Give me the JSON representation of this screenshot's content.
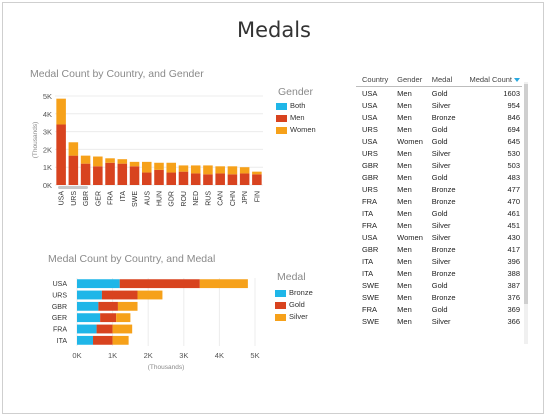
{
  "page": {
    "title": "Medals"
  },
  "colors": {
    "both": "#1fb6e8",
    "men": "#d8431f",
    "women": "#f6a11a",
    "bronze": "#1fb6e8",
    "gold": "#d8431f",
    "silver": "#f6a11a"
  },
  "chart_data": [
    {
      "type": "bar",
      "stacked": true,
      "title": "Medal Count by Country, and Gender",
      "xlabel": "",
      "ylabel": "(Thousands)",
      "ylim": [
        0,
        5000
      ],
      "yticks": [
        0,
        1000,
        2000,
        3000,
        4000,
        5000
      ],
      "ytick_labels": [
        "0K",
        "1K",
        "2K",
        "3K",
        "4K",
        "5K"
      ],
      "categories": [
        "USA",
        "URS",
        "GBR",
        "GER",
        "FRA",
        "ITA",
        "SWE",
        "AUS",
        "HUN",
        "GDR",
        "ROU",
        "NED",
        "RUS",
        "CAN",
        "CHN",
        "JPN",
        "FIN"
      ],
      "legend_title": "Gender",
      "legend_position": "right",
      "series": [
        {
          "name": "Both",
          "values": [
            0,
            0,
            0,
            0,
            0,
            0,
            0,
            0,
            0,
            0,
            0,
            0,
            0,
            0,
            0,
            0,
            0
          ]
        },
        {
          "name": "Men",
          "values": [
            3400,
            1650,
            1200,
            1050,
            1250,
            1200,
            1050,
            700,
            850,
            700,
            750,
            650,
            600,
            650,
            600,
            650,
            600
          ]
        },
        {
          "name": "Women",
          "values": [
            1450,
            750,
            450,
            550,
            250,
            250,
            250,
            600,
            400,
            550,
            350,
            450,
            500,
            400,
            450,
            350,
            150
          ]
        }
      ]
    },
    {
      "type": "bar",
      "orientation": "horizontal",
      "stacked": true,
      "title": "Medal Count by Country, and Medal",
      "xlabel": "(Thousands)",
      "ylabel": "",
      "xlim": [
        0,
        5000
      ],
      "xticks": [
        0,
        1000,
        2000,
        3000,
        4000,
        5000
      ],
      "xtick_labels": [
        "0K",
        "1K",
        "2K",
        "3K",
        "4K",
        "5K"
      ],
      "categories": [
        "USA",
        "URS",
        "GBR",
        "GER",
        "FRA",
        "ITA"
      ],
      "legend_title": "Medal",
      "legend_position": "right",
      "series": [
        {
          "name": "Bronze",
          "values": [
            1200,
            700,
            600,
            650,
            550,
            450
          ]
        },
        {
          "name": "Gold",
          "values": [
            2250,
            1000,
            550,
            450,
            450,
            550
          ]
        },
        {
          "name": "Silver",
          "values": [
            1350,
            700,
            550,
            400,
            550,
            450
          ]
        }
      ]
    }
  ],
  "table": {
    "columns": [
      "Country",
      "Gender",
      "Medal",
      "Medal Count"
    ],
    "rows": [
      [
        "USA",
        "Men",
        "Gold",
        "1603"
      ],
      [
        "USA",
        "Men",
        "Silver",
        "954"
      ],
      [
        "USA",
        "Men",
        "Bronze",
        "846"
      ],
      [
        "URS",
        "Men",
        "Gold",
        "694"
      ],
      [
        "USA",
        "Women",
        "Gold",
        "645"
      ],
      [
        "URS",
        "Men",
        "Silver",
        "530"
      ],
      [
        "GBR",
        "Men",
        "Silver",
        "503"
      ],
      [
        "GBR",
        "Men",
        "Gold",
        "483"
      ],
      [
        "URS",
        "Men",
        "Bronze",
        "477"
      ],
      [
        "FRA",
        "Men",
        "Bronze",
        "470"
      ],
      [
        "ITA",
        "Men",
        "Gold",
        "461"
      ],
      [
        "FRA",
        "Men",
        "Silver",
        "451"
      ],
      [
        "USA",
        "Women",
        "Silver",
        "430"
      ],
      [
        "GBR",
        "Men",
        "Bronze",
        "417"
      ],
      [
        "ITA",
        "Men",
        "Silver",
        "396"
      ],
      [
        "ITA",
        "Men",
        "Bronze",
        "388"
      ],
      [
        "SWE",
        "Men",
        "Gold",
        "387"
      ],
      [
        "SWE",
        "Men",
        "Bronze",
        "376"
      ],
      [
        "FRA",
        "Men",
        "Gold",
        "369"
      ],
      [
        "SWE",
        "Men",
        "Silver",
        "366"
      ]
    ]
  }
}
